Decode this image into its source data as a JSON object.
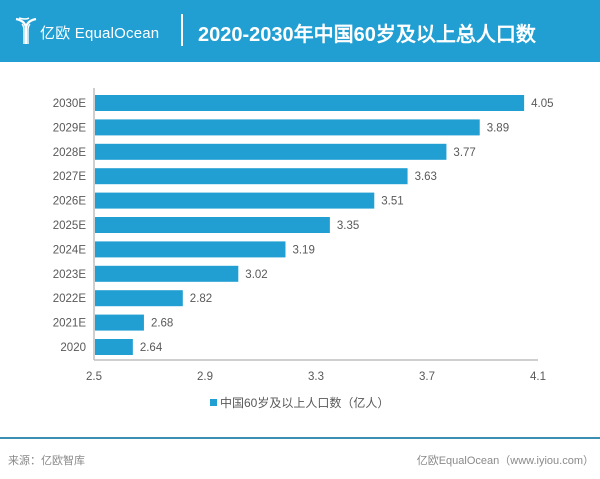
{
  "header": {
    "brand": "亿欧 EqualOcean",
    "title": "2020-2030年中国60岁及以上总人口数"
  },
  "colors": {
    "header_bg": "#219fd3",
    "bar": "#219fd3",
    "text": "#595959",
    "axis": "#bfbfbf"
  },
  "chart_data": {
    "type": "bar",
    "orientation": "horizontal",
    "title": "2020-2030年中国60岁及以上总人口数",
    "categories": [
      "2020",
      "2021E",
      "2022E",
      "2023E",
      "2024E",
      "2025E",
      "2026E",
      "2027E",
      "2028E",
      "2029E",
      "2030E"
    ],
    "series": [
      {
        "name": "中国60岁及以上人口数（亿人）",
        "values": [
          2.64,
          2.68,
          2.82,
          3.02,
          3.19,
          3.35,
          3.51,
          3.63,
          3.77,
          3.89,
          4.05
        ]
      }
    ],
    "xlabel": "",
    "ylabel": "",
    "xlim": [
      2.5,
      4.1
    ],
    "xticks": [
      "2.5",
      "2.9",
      "3.3",
      "3.7",
      "4.1"
    ],
    "grid": false,
    "legend": "bottom"
  },
  "footer": {
    "source": "来源：亿欧智库",
    "credit": "亿欧EqualOcean（www.iyiou.com）"
  }
}
